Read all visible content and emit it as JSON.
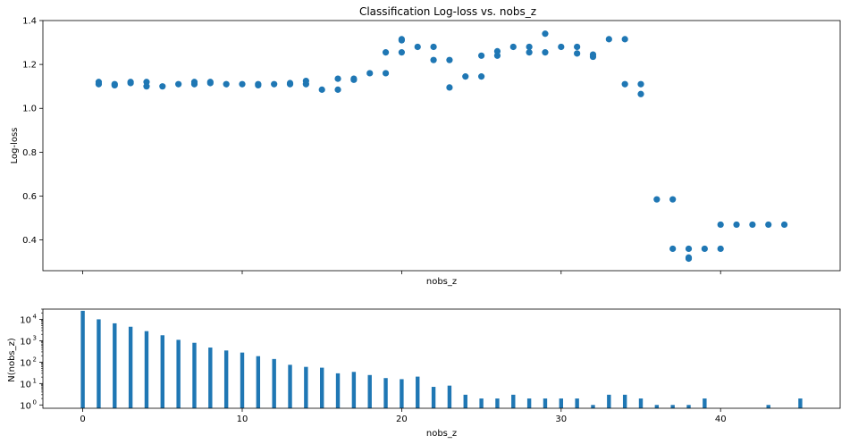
{
  "chart_data": [
    {
      "type": "scatter",
      "title": "Classification Log-loss vs. nobs_z",
      "xlabel": "nobs_z",
      "ylabel": "Log-loss",
      "xlim": [
        -2.5,
        47.5
      ],
      "ylim": [
        0.26,
        1.4
      ],
      "yticks": [
        0.4,
        0.6,
        0.8,
        1.0,
        1.2,
        1.4
      ],
      "ytick_labels": [
        "0.4",
        "0.6",
        "0.8",
        "1.0",
        "1.2",
        "1.4"
      ],
      "xticks": [
        0,
        10,
        20,
        30,
        40
      ],
      "show_xtick_labels": false,
      "color": "#1f77b4",
      "points": [
        [
          1,
          1.12
        ],
        [
          1,
          1.11
        ],
        [
          2,
          1.105
        ],
        [
          2,
          1.11
        ],
        [
          3,
          1.115
        ],
        [
          3,
          1.12
        ],
        [
          4,
          1.12
        ],
        [
          4,
          1.1
        ],
        [
          5,
          1.1
        ],
        [
          6,
          1.11
        ],
        [
          7,
          1.12
        ],
        [
          7,
          1.11
        ],
        [
          8,
          1.12
        ],
        [
          8,
          1.115
        ],
        [
          9,
          1.11
        ],
        [
          10,
          1.11
        ],
        [
          11,
          1.105
        ],
        [
          11,
          1.11
        ],
        [
          12,
          1.11
        ],
        [
          13,
          1.11
        ],
        [
          13,
          1.115
        ],
        [
          14,
          1.11
        ],
        [
          14,
          1.125
        ],
        [
          15,
          1.085
        ],
        [
          16,
          1.085
        ],
        [
          16,
          1.135
        ],
        [
          17,
          1.13
        ],
        [
          17,
          1.135
        ],
        [
          18,
          1.16
        ],
        [
          19,
          1.16
        ],
        [
          19,
          1.255
        ],
        [
          20,
          1.255
        ],
        [
          20,
          1.315
        ],
        [
          20,
          1.31
        ],
        [
          21,
          1.28
        ],
        [
          22,
          1.28
        ],
        [
          22,
          1.22
        ],
        [
          23,
          1.22
        ],
        [
          23,
          1.095
        ],
        [
          24,
          1.145
        ],
        [
          25,
          1.24
        ],
        [
          25,
          1.145
        ],
        [
          26,
          1.24
        ],
        [
          26,
          1.26
        ],
        [
          27,
          1.28
        ],
        [
          28,
          1.28
        ],
        [
          28,
          1.255
        ],
        [
          29,
          1.34
        ],
        [
          29,
          1.255
        ],
        [
          30,
          1.28
        ],
        [
          31,
          1.28
        ],
        [
          31,
          1.25
        ],
        [
          32,
          1.245
        ],
        [
          32,
          1.235
        ],
        [
          33,
          1.315
        ],
        [
          34,
          1.315
        ],
        [
          34,
          1.11
        ],
        [
          35,
          1.11
        ],
        [
          35,
          1.065
        ],
        [
          36,
          0.585
        ],
        [
          37,
          0.585
        ],
        [
          37,
          0.36
        ],
        [
          38,
          0.36
        ],
        [
          38,
          0.32
        ],
        [
          38,
          0.315
        ],
        [
          39,
          0.36
        ],
        [
          40,
          0.36
        ],
        [
          40,
          0.47
        ],
        [
          41,
          0.47
        ],
        [
          42,
          0.47
        ],
        [
          43,
          0.47
        ],
        [
          44,
          0.47
        ]
      ]
    },
    {
      "type": "bar",
      "xlabel": "nobs_z",
      "ylabel": "N(nobs_z)",
      "log_y": true,
      "xlim": [
        -2.5,
        47.5
      ],
      "ylim": [
        0.7,
        30000
      ],
      "xticks": [
        0,
        10,
        20,
        30,
        40
      ],
      "xtick_labels": [
        "0",
        "10",
        "20",
        "30",
        "40"
      ],
      "yticks": [
        1,
        10,
        100,
        1000,
        10000
      ],
      "ytick_labels": [
        {
          "base": "10",
          "exp": "0"
        },
        {
          "base": "10",
          "exp": "1"
        },
        {
          "base": "10",
          "exp": "2"
        },
        {
          "base": "10",
          "exp": "3"
        },
        {
          "base": "10",
          "exp": "4"
        }
      ],
      "color": "#1f77b4",
      "categories": [
        0,
        1,
        2,
        3,
        4,
        5,
        6,
        7,
        8,
        9,
        10,
        11,
        12,
        13,
        14,
        15,
        16,
        17,
        18,
        19,
        20,
        21,
        22,
        23,
        24,
        25,
        26,
        27,
        28,
        29,
        30,
        31,
        32,
        33,
        34,
        35,
        36,
        37,
        38,
        39,
        40,
        41,
        42,
        43,
        44,
        45
      ],
      "values": [
        25000,
        10000,
        6500,
        4500,
        2800,
        1800,
        1100,
        800,
        480,
        350,
        280,
        190,
        140,
        75,
        60,
        55,
        30,
        35,
        25,
        18,
        16,
        21,
        7,
        8,
        3,
        2,
        2,
        3,
        2,
        2,
        2,
        2,
        1,
        3,
        3,
        2,
        1,
        1,
        1,
        2,
        0,
        0,
        0,
        1,
        0,
        2
      ]
    }
  ]
}
